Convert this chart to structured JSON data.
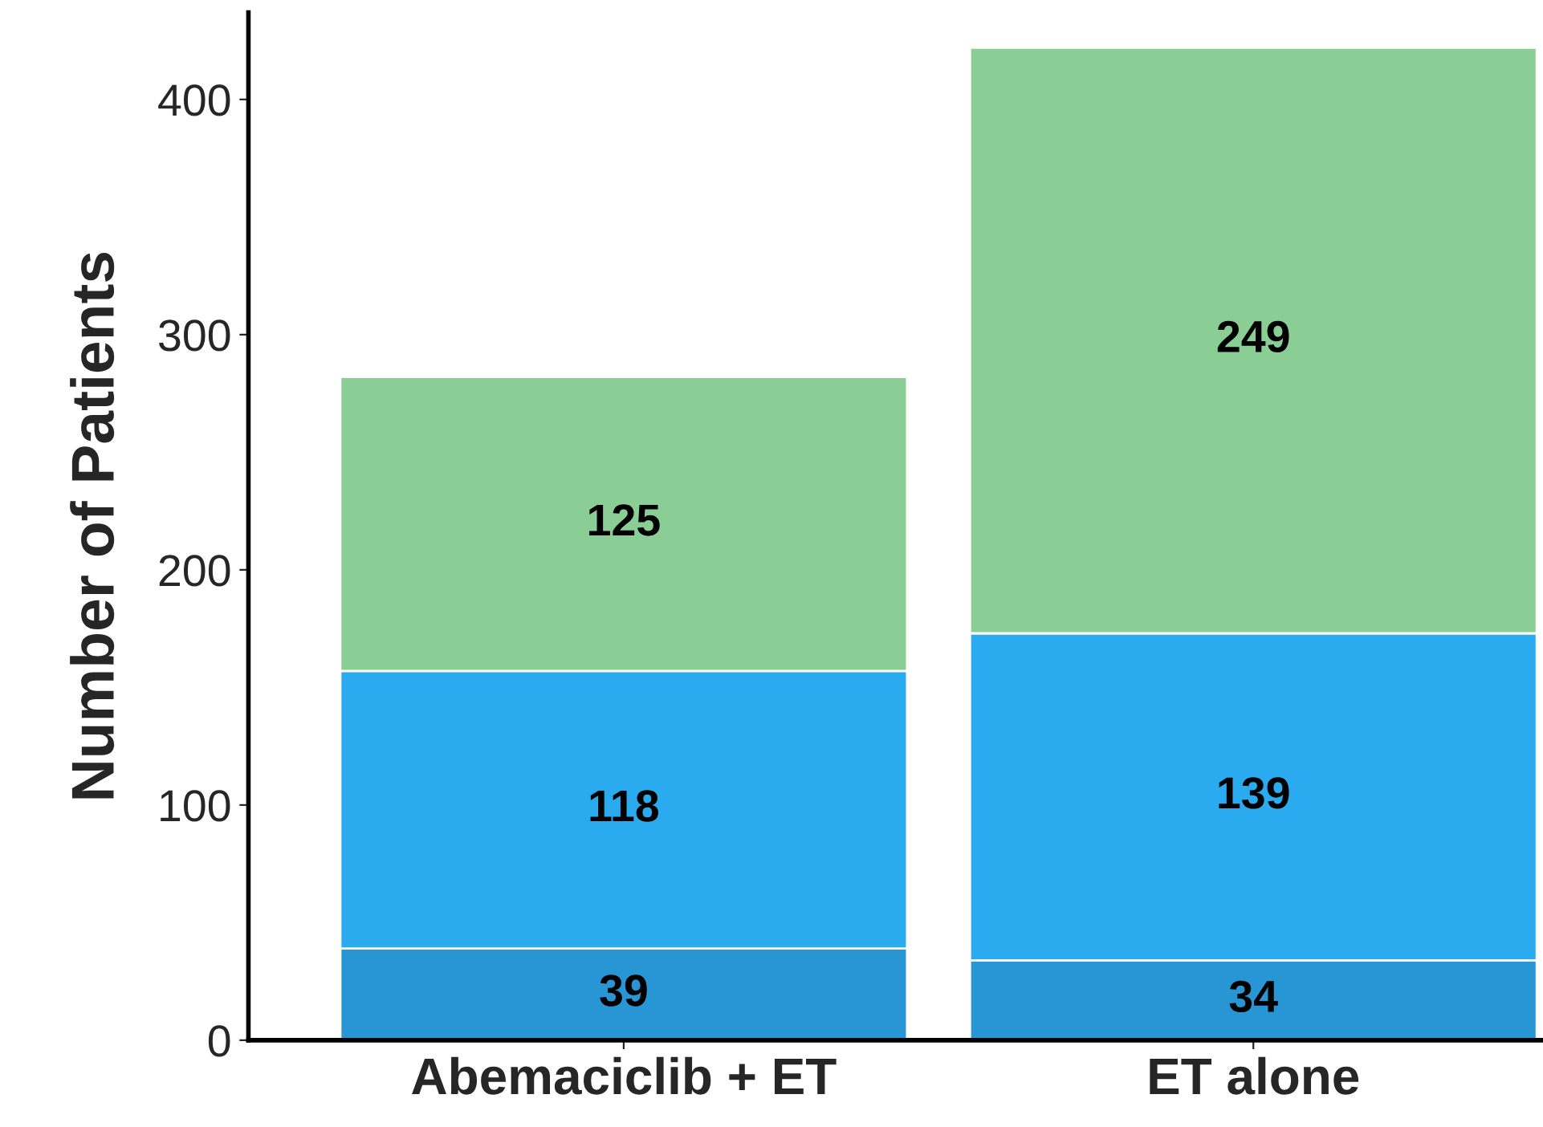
{
  "chart_data": {
    "type": "bar",
    "stacked": true,
    "ylabel": "Number of Patients",
    "categories": [
      "Abemaciclib + ET",
      "ET alone"
    ],
    "series": [
      {
        "color": "#2896d4",
        "values": [
          39,
          34
        ]
      },
      {
        "color": "#2aabf0",
        "values": [
          118,
          139
        ]
      },
      {
        "color": "#8ace96",
        "values": [
          125,
          249
        ]
      }
    ],
    "ylim": [
      0,
      437
    ],
    "yticks": [
      0,
      100,
      200,
      300,
      400
    ],
    "data_labels": true,
    "grid": false,
    "legend": false
  }
}
